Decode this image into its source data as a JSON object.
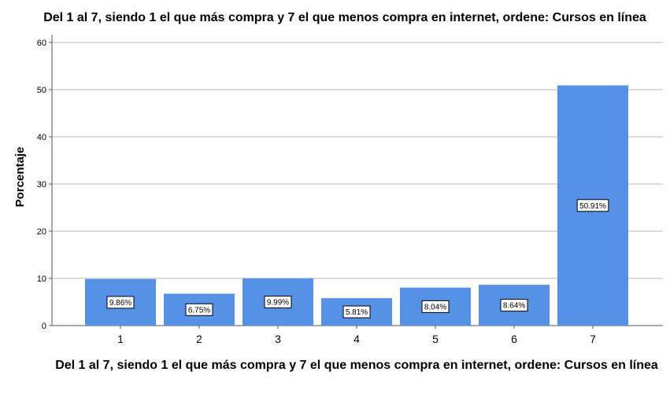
{
  "chart_data": {
    "type": "bar",
    "title": "Del 1 al 7, siendo 1 el que más compra y 7 el que menos compra en internet, ordene: Cursos en línea",
    "xlabel": "Del 1 al 7, siendo 1 el que más compra y 7 el que menos compra en internet, ordene: Cursos en línea",
    "ylabel": "Porcentaje",
    "categories": [
      "1",
      "2",
      "3",
      "4",
      "5",
      "6",
      "7"
    ],
    "values": [
      9.86,
      6.75,
      9.99,
      5.81,
      8.04,
      8.64,
      50.91
    ],
    "data_labels": [
      "9.86%",
      "6.75%",
      "9.99%",
      "5.81%",
      "8.04%",
      "8.64%",
      "50.91%"
    ],
    "yticks": [
      "0",
      "10",
      "20",
      "30",
      "40",
      "50",
      "60"
    ],
    "ylim": [
      0,
      60
    ],
    "grid": true,
    "bar_color": "#5592e6",
    "label_box_color": "#ffffff"
  }
}
